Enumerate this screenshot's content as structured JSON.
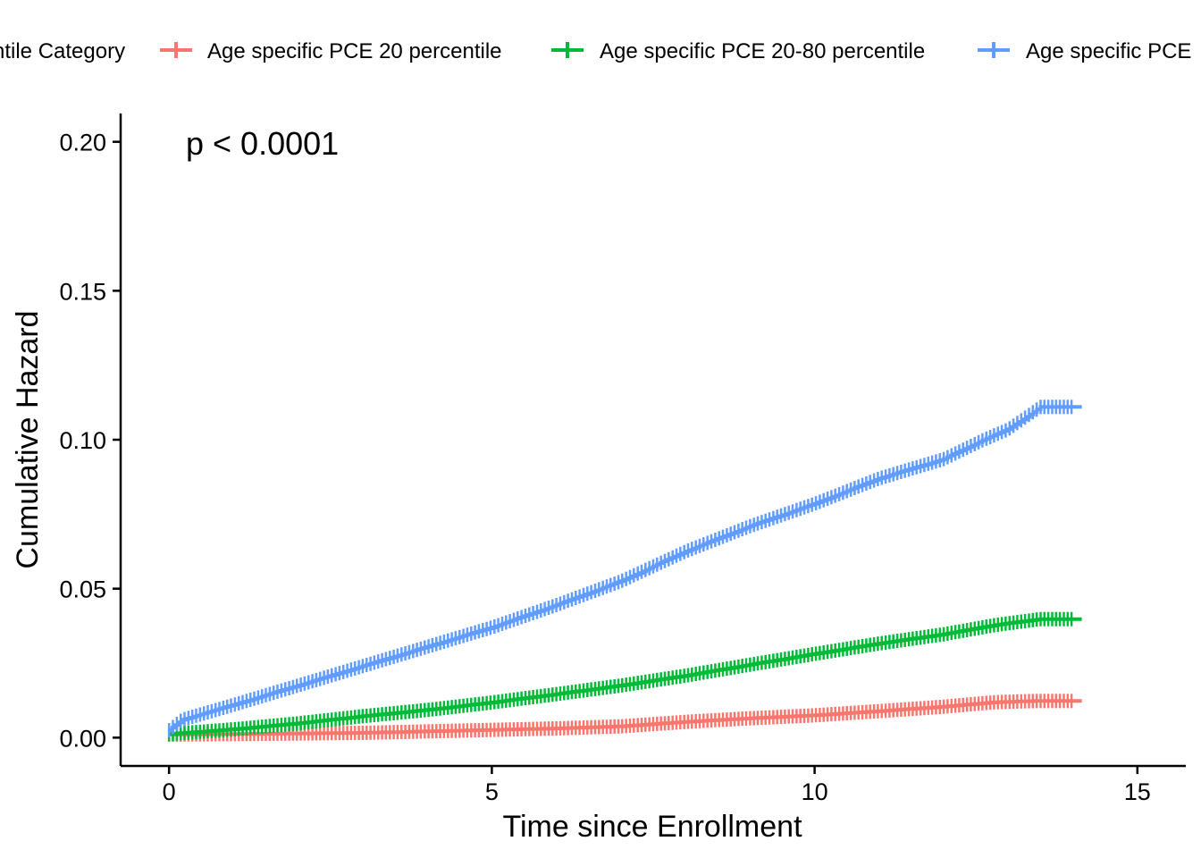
{
  "chart_data": {
    "type": "line",
    "step": true,
    "annotation": "p < 0.0001",
    "xlabel": "Time since Enrollment",
    "ylabel": "Cumulative Hazard",
    "xlim": [
      -0.75,
      15.75
    ],
    "ylim": [
      -0.0095,
      0.2095
    ],
    "x_ticks": [
      0,
      5,
      10,
      15
    ],
    "x_tick_labels": [
      "0",
      "5",
      "10",
      "15"
    ],
    "y_ticks": [
      0,
      0.05,
      0.1,
      0.15,
      0.2
    ],
    "y_tick_labels": [
      "0.00",
      "0.05",
      "0.10",
      "0.15",
      "0.20"
    ],
    "grid": false,
    "legend": {
      "position": "top",
      "title": "ntile Category",
      "entries": [
        "Age specific PCE 20 percentile",
        "Age specific PCE 20-80 percentile",
        "Age specific PCE"
      ]
    },
    "series": [
      {
        "name": "Age specific PCE 20 percentile",
        "color": "#F8766D",
        "x": [
          0,
          1,
          2,
          3,
          4,
          5,
          6,
          7,
          8,
          9,
          10,
          11,
          12,
          12.8,
          13.4,
          14
        ],
        "y": [
          0.001,
          0.0012,
          0.0014,
          0.0016,
          0.0021,
          0.0026,
          0.0031,
          0.0038,
          0.0053,
          0.0065,
          0.0075,
          0.0089,
          0.0104,
          0.0119,
          0.0123,
          0.0123
        ]
      },
      {
        "name": "Age specific PCE 20-80 percentile",
        "color": "#00BA38",
        "x": [
          0,
          1,
          2,
          3,
          4,
          5,
          6,
          7,
          8,
          9,
          10,
          11,
          12,
          12.8,
          13.5,
          14
        ],
        "y": [
          0.0012,
          0.0028,
          0.0048,
          0.0072,
          0.0093,
          0.0118,
          0.0146,
          0.0175,
          0.0208,
          0.0245,
          0.0281,
          0.0316,
          0.0347,
          0.0378,
          0.0398,
          0.0398
        ]
      },
      {
        "name": "Age specific PCE",
        "color": "#619CFF",
        "x": [
          0,
          0.2,
          1,
          2,
          3,
          4,
          5,
          6,
          7,
          8,
          9,
          10,
          11,
          12,
          12.6,
          13,
          13.5,
          14
        ],
        "y": [
          0.0025,
          0.006,
          0.011,
          0.0175,
          0.024,
          0.0305,
          0.037,
          0.0445,
          0.0525,
          0.0625,
          0.071,
          0.0785,
          0.087,
          0.0935,
          0.0998,
          0.1035,
          0.111,
          0.111
        ]
      }
    ]
  }
}
